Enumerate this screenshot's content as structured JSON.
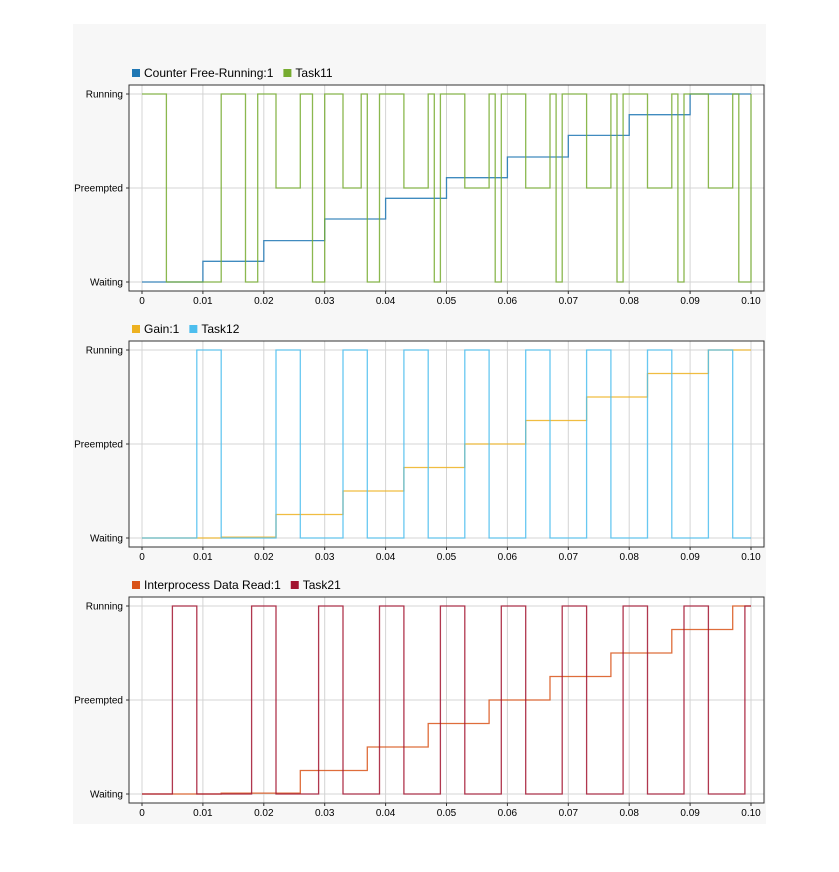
{
  "chart_data": [
    {
      "type": "line",
      "step": true,
      "xlim": [
        0,
        0.1
      ],
      "x_ticks": [
        "0",
        "0.01",
        "0.02",
        "0.03",
        "0.04",
        "0.05",
        "0.06",
        "0.07",
        "0.08",
        "0.09",
        "0.10"
      ],
      "y_ticks": [
        "Waiting",
        "Preempted",
        "Running"
      ],
      "ylim": [
        0,
        2
      ],
      "grid": true,
      "legend_position": "top-left",
      "series": [
        {
          "name": "Counter Free-Running:1",
          "color": "#1f77b4",
          "x": [
            0,
            0.01,
            0.02,
            0.03,
            0.04,
            0.05,
            0.06,
            0.07,
            0.08,
            0.09,
            0.1
          ],
          "y": [
            0,
            0.22,
            0.44,
            0.67,
            0.89,
            1.11,
            1.33,
            1.56,
            1.78,
            2.0,
            2.0
          ]
        },
        {
          "name": "Task11",
          "color": "#77ac30",
          "x": [
            0,
            0.004,
            0.013,
            0.017,
            0.019,
            0.022,
            0.026,
            0.028,
            0.03,
            0.033,
            0.036,
            0.037,
            0.039,
            0.043,
            0.047,
            0.048,
            0.049,
            0.053,
            0.057,
            0.058,
            0.059,
            0.063,
            0.067,
            0.068,
            0.069,
            0.073,
            0.077,
            0.078,
            0.079,
            0.083,
            0.087,
            0.088,
            0.089,
            0.093,
            0.097,
            0.098,
            0.1
          ],
          "y": [
            2,
            0,
            2,
            0,
            2,
            1,
            2,
            0,
            2,
            1,
            2,
            0,
            2,
            1,
            2,
            0,
            2,
            1,
            2,
            0,
            2,
            1,
            2,
            0,
            2,
            1,
            2,
            0,
            2,
            1,
            2,
            0,
            2,
            1,
            2,
            0,
            2
          ]
        }
      ]
    },
    {
      "type": "line",
      "step": true,
      "xlim": [
        0,
        0.1
      ],
      "x_ticks": [
        "0",
        "0.01",
        "0.02",
        "0.03",
        "0.04",
        "0.05",
        "0.06",
        "0.07",
        "0.08",
        "0.09",
        "0.10"
      ],
      "y_ticks": [
        "Waiting",
        "Preempted",
        "Running"
      ],
      "ylim": [
        0,
        2
      ],
      "grid": true,
      "legend_position": "top-left",
      "series": [
        {
          "name": "Gain:1",
          "color": "#edb120",
          "x": [
            0,
            0.013,
            0.022,
            0.033,
            0.043,
            0.053,
            0.063,
            0.073,
            0.083,
            0.093,
            0.1
          ],
          "y": [
            0,
            0.01,
            0.25,
            0.5,
            0.75,
            1.0,
            1.25,
            1.5,
            1.75,
            2.0,
            2.0
          ]
        },
        {
          "name": "Task12",
          "color": "#4dbeee",
          "x": [
            0,
            0.009,
            0.013,
            0.022,
            0.026,
            0.033,
            0.037,
            0.043,
            0.047,
            0.053,
            0.057,
            0.063,
            0.067,
            0.073,
            0.077,
            0.083,
            0.087,
            0.093,
            0.097,
            0.1
          ],
          "y": [
            0,
            2,
            0,
            2,
            0,
            2,
            0,
            2,
            0,
            2,
            0,
            2,
            0,
            2,
            0,
            2,
            0,
            2,
            0,
            0
          ]
        }
      ]
    },
    {
      "type": "line",
      "step": true,
      "xlim": [
        0,
        0.1
      ],
      "x_ticks": [
        "0",
        "0.01",
        "0.02",
        "0.03",
        "0.04",
        "0.05",
        "0.06",
        "0.07",
        "0.08",
        "0.09",
        "0.10"
      ],
      "y_ticks": [
        "Waiting",
        "Preempted",
        "Running"
      ],
      "ylim": [
        0,
        2
      ],
      "grid": true,
      "legend_position": "top-left",
      "series": [
        {
          "name": "Interprocess Data Read:1",
          "color": "#d95319",
          "x": [
            0,
            0.013,
            0.026,
            0.037,
            0.047,
            0.057,
            0.067,
            0.077,
            0.087,
            0.097,
            0.1
          ],
          "y": [
            0,
            0.01,
            0.25,
            0.5,
            0.75,
            1.0,
            1.25,
            1.5,
            1.75,
            2.0,
            2.0
          ]
        },
        {
          "name": "Task21",
          "color": "#a2142f",
          "x": [
            0,
            0.005,
            0.009,
            0.018,
            0.022,
            0.029,
            0.033,
            0.039,
            0.043,
            0.049,
            0.053,
            0.059,
            0.063,
            0.069,
            0.073,
            0.079,
            0.083,
            0.089,
            0.093,
            0.099,
            0.1
          ],
          "y": [
            0,
            2,
            0,
            2,
            0,
            2,
            0,
            2,
            0,
            2,
            0,
            2,
            0,
            2,
            0,
            2,
            0,
            2,
            0,
            2,
            2
          ]
        }
      ]
    }
  ]
}
